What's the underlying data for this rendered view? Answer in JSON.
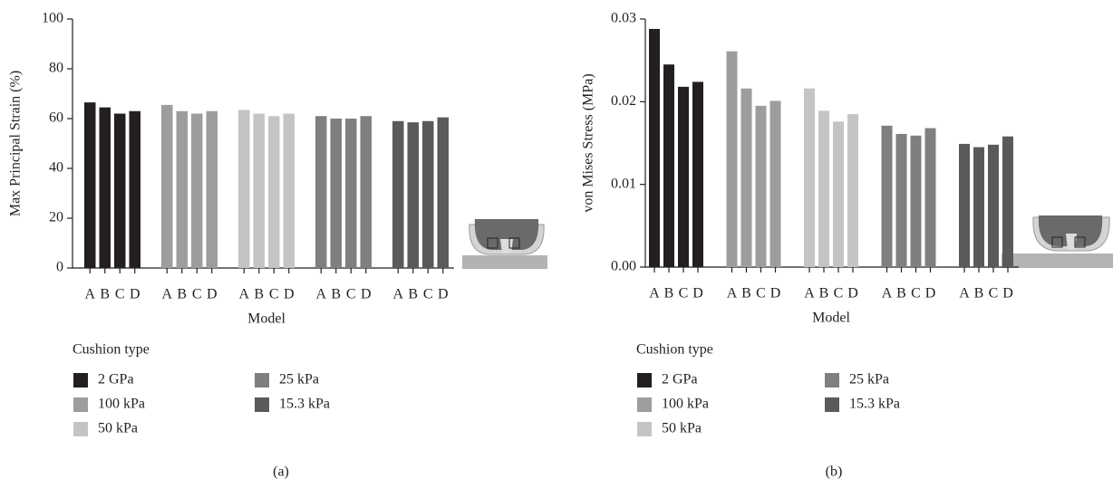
{
  "chart_data": [
    {
      "type": "bar",
      "caption": "(a)",
      "x_label": "Model",
      "y_label": "Max Principal Strain (%)",
      "legend_title": "Cushion type",
      "categories": [
        "A",
        "B",
        "C",
        "D"
      ],
      "series": [
        {
          "name": "2 GPa",
          "color": "#231f20",
          "values": [
            66.5,
            64.5,
            62,
            63
          ]
        },
        {
          "name": "100 kPa",
          "color": "#9d9d9d",
          "values": [
            65.5,
            63,
            62,
            63
          ]
        },
        {
          "name": "50 kPa",
          "color": "#c4c4c4",
          "values": [
            63.5,
            62,
            61,
            62
          ]
        },
        {
          "name": "25 kPa",
          "color": "#7f7f7f",
          "values": [
            61,
            60,
            60,
            61
          ]
        },
        {
          "name": "15.3 kPa",
          "color": "#5a5a5a",
          "values": [
            59,
            58.5,
            59,
            60.5
          ]
        }
      ],
      "ylim": [
        0,
        100
      ],
      "yticks": [
        0,
        20,
        40,
        60,
        80,
        100
      ]
    },
    {
      "type": "bar",
      "caption": "(b)",
      "x_label": "Model",
      "y_label": "von Mises Stress (MPa)",
      "legend_title": "Cushion type",
      "categories": [
        "A",
        "B",
        "C",
        "D"
      ],
      "series": [
        {
          "name": "2 GPa",
          "color": "#231f20",
          "values": [
            0.0288,
            0.0245,
            0.0218,
            0.0224
          ]
        },
        {
          "name": "100 kPa",
          "color": "#9d9d9d",
          "values": [
            0.0261,
            0.0216,
            0.0195,
            0.0201
          ]
        },
        {
          "name": "50 kPa",
          "color": "#c4c4c4",
          "values": [
            0.0216,
            0.0189,
            0.0176,
            0.0185
          ]
        },
        {
          "name": "25 kPa",
          "color": "#7f7f7f",
          "values": [
            0.0171,
            0.0161,
            0.0159,
            0.0168
          ]
        },
        {
          "name": "15.3 kPa",
          "color": "#5a5a5a",
          "values": [
            0.0149,
            0.0145,
            0.0148,
            0.0158
          ]
        }
      ],
      "ylim": [
        0,
        0.03
      ],
      "yticks": [
        {
          "value": 0,
          "label": "0.00"
        },
        0.01,
        0.02,
        0.03
      ]
    }
  ]
}
